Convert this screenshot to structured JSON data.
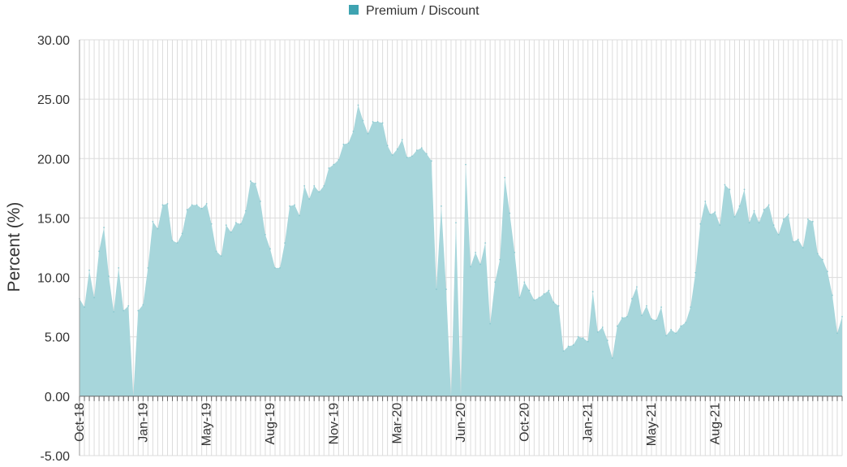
{
  "chart_data": {
    "type": "area",
    "legend": {
      "position": "top-center",
      "entries": [
        "Premium / Discount"
      ]
    },
    "ylabel": "Percent (%)",
    "xlabel": "",
    "ylim": [
      -5,
      30
    ],
    "y_ticks": [
      "-5.00",
      "0.00",
      "5.00",
      "10.00",
      "15.00",
      "20.00",
      "25.00",
      "30.00"
    ],
    "x_tick_labels": [
      "Oct-18",
      "Jan-19",
      "May-19",
      "Aug-19",
      "Nov-19",
      "Mar-20",
      "Jun-20",
      "Oct-20",
      "Jan-21",
      "May-21",
      "Aug-21"
    ],
    "grid": true,
    "series_color": "#3ea3b1",
    "fill_color": "#a7d6db",
    "series": [
      {
        "name": "Premium / Discount",
        "values": [
          8.2,
          7.5,
          10.6,
          8.3,
          12.2,
          14.2,
          10.1,
          7.1,
          10.8,
          7.2,
          7.6,
          0.0,
          7.2,
          7.7,
          10.8,
          14.7,
          14.1,
          16.1,
          16.2,
          13.1,
          12.9,
          13.7,
          15.7,
          16.1,
          16.1,
          15.8,
          16.2,
          14.5,
          12.2,
          11.8,
          14.4,
          13.8,
          14.6,
          14.5,
          15.6,
          18.1,
          17.9,
          16.4,
          13.6,
          12.4,
          10.8,
          10.8,
          12.9,
          16.0,
          16.1,
          15.2,
          17.7,
          16.6,
          17.7,
          17.2,
          17.7,
          19.2,
          19.5,
          19.9,
          21.2,
          21.3,
          22.3,
          24.5,
          23.2,
          22.1,
          23.1,
          23.1,
          23.0,
          21.1,
          20.3,
          20.8,
          21.6,
          20.1,
          20.2,
          20.7,
          20.9,
          20.4,
          19.8,
          9.0,
          16.0,
          9.0,
          0.0,
          14.6,
          0.0,
          19.5,
          10.9,
          12.1,
          11.1,
          12.9,
          6.1,
          9.6,
          11.5,
          18.4,
          15.4,
          12.1,
          8.3,
          9.6,
          8.9,
          8.1,
          8.3,
          8.6,
          8.9,
          7.9,
          7.6,
          3.8,
          4.2,
          4.3,
          5.0,
          4.9,
          4.6,
          8.8,
          5.4,
          5.8,
          4.7,
          3.2,
          5.9,
          6.6,
          6.7,
          8.2,
          9.2,
          6.8,
          7.6,
          6.5,
          6.4,
          7.5,
          5.1,
          5.6,
          5.3,
          5.9,
          6.2,
          7.5,
          10.4,
          14.5,
          16.4,
          15.3,
          15.5,
          14.4,
          17.8,
          17.4,
          15.1,
          16.0,
          17.4,
          14.6,
          15.6,
          14.6,
          15.7,
          16.1,
          14.4,
          13.6,
          14.9,
          15.3,
          13.0,
          13.2,
          12.5,
          14.9,
          14.7,
          12.0,
          11.5,
          10.5,
          8.5,
          5.3,
          6.7
        ]
      }
    ]
  }
}
